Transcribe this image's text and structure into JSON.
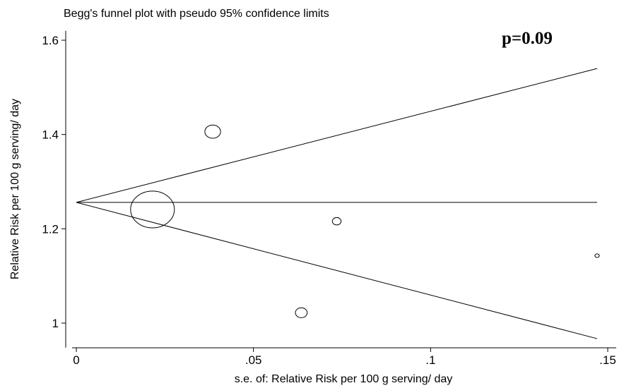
{
  "chart_data": {
    "type": "scatter",
    "title": "Begg's funnel plot with pseudo 95% confidence limits",
    "xlabel": "s.e. of: Relative Risk per 100 g serving/ day",
    "ylabel": "Relative Risk per 100 g serving/ day",
    "annotation": "p=0.09",
    "xlim": [
      0,
      0.15
    ],
    "ylim": [
      0.96,
      1.62
    ],
    "x_ticks": [
      0,
      0.05,
      0.1,
      0.15
    ],
    "x_tick_labels": [
      "0",
      ".05",
      ".1",
      ".15"
    ],
    "y_ticks": [
      1,
      1.2,
      1.4,
      1.6
    ],
    "y_tick_labels": [
      "1",
      "1.2",
      "1.4",
      "1.6"
    ],
    "pooled_estimate": 1.256,
    "limit_lines": {
      "apex": [
        0,
        1.256
      ],
      "upper_end": [
        0.147,
        1.54
      ],
      "lower_end": [
        0.147,
        0.967
      ]
    },
    "points": [
      {
        "se": 0.0385,
        "rr": 1.406,
        "weight": 0.36
      },
      {
        "se": 0.0215,
        "rr": 1.241,
        "weight": 1.0
      },
      {
        "se": 0.0735,
        "rr": 1.216,
        "weight": 0.2
      },
      {
        "se": 0.0635,
        "rr": 1.022,
        "weight": 0.27
      },
      {
        "se": 0.147,
        "rr": 1.143,
        "weight": 0.1
      }
    ],
    "grid": false,
    "legend": "none"
  }
}
